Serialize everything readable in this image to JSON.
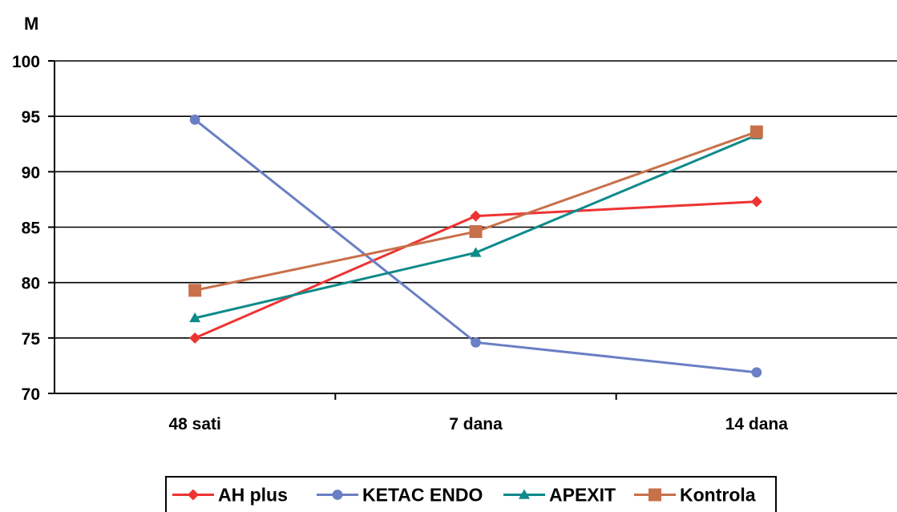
{
  "chart_data": {
    "type": "line",
    "title": "",
    "xlabel": "",
    "ylabel": "M",
    "categories": [
      "48 sati",
      "7 dana",
      "14 dana"
    ],
    "ylim": [
      70,
      100
    ],
    "yticks": [
      70,
      75,
      80,
      85,
      90,
      95,
      100
    ],
    "grid": true,
    "legend_position": "bottom",
    "series": [
      {
        "name": "AH plus",
        "values": [
          75.0,
          86.0,
          87.3
        ],
        "color": "#ee3333",
        "marker": "diamond"
      },
      {
        "name": "KETAC ENDO",
        "values": [
          94.7,
          74.6,
          71.9
        ],
        "color": "#6a7fc4",
        "marker": "circle"
      },
      {
        "name": "APEXIT",
        "values": [
          76.8,
          82.7,
          93.3
        ],
        "color": "#0f8a8a",
        "marker": "triangle"
      },
      {
        "name": "Kontrola",
        "values": [
          79.3,
          84.6,
          93.6
        ],
        "color": "#c8704a",
        "marker": "square"
      }
    ]
  }
}
